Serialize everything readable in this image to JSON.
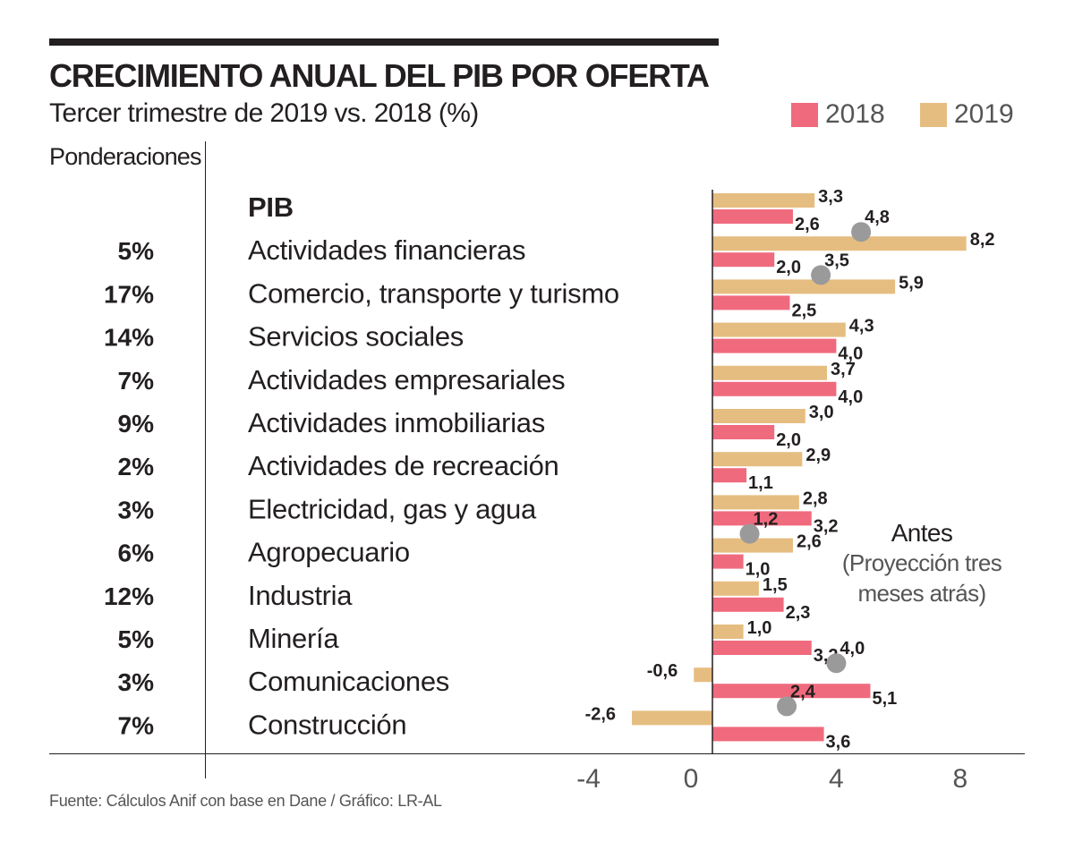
{
  "header": {
    "title": "CRECIMIENTO ANUAL DEL PIB POR OFERTA",
    "subtitle": "Tercer trimestre de 2019 vs. 2018 (%)"
  },
  "ponderaciones_label": "Ponderaciones",
  "note": {
    "heading": "Antes",
    "line1": "(Proyección tres",
    "line2": "meses atrás)"
  },
  "source": "Fuente: Cálculos Anif con base en Dane / Gráfico: LR-AL",
  "colors": {
    "s2018": "#f06a7e",
    "s2019": "#e6bd80",
    "marker": "#9a9a9a",
    "text": "#231f20",
    "axis": "#555555"
  },
  "chart_data": {
    "type": "bar",
    "orientation": "horizontal",
    "title": "CRECIMIENTO ANUAL DEL PIB POR OFERTA",
    "subtitle": "Tercer trimestre de 2019 vs. 2018 (%)",
    "xlim": [
      -6.3,
      10.8
    ],
    "x_ticks": [
      -4,
      0,
      4,
      8
    ],
    "x_tick_labels": [
      "-4",
      "0",
      "4",
      "8"
    ],
    "legend": [
      "2018",
      "2019"
    ],
    "legend_position": "top-right",
    "categories": [
      "PIB",
      "Actividades financieras",
      "Comercio, transporte y turismo",
      "Servicios sociales",
      "Actividades empresariales",
      "Actividades inmobiliarias",
      "Actividades de recreación",
      "Electricidad, gas y agua",
      "Agropecuario",
      "Industria",
      "Minería",
      "Comunicaciones",
      "Construcción"
    ],
    "weights": [
      "",
      "5%",
      "17%",
      "14%",
      "7%",
      "9%",
      "2%",
      "3%",
      "6%",
      "12%",
      "5%",
      "3%",
      "7%"
    ],
    "series": [
      {
        "name": "2019",
        "values": [
          3.3,
          8.2,
          5.9,
          4.3,
          3.7,
          3.0,
          2.9,
          2.8,
          2.6,
          1.5,
          1.0,
          -0.6,
          -2.6
        ],
        "labels": [
          "3,3",
          "8,2",
          "5,9",
          "4,3",
          "3,7",
          "3,0",
          "2,9",
          "2,8",
          "2,6",
          "1,5",
          "1,0",
          "-0,6",
          "-2,6"
        ]
      },
      {
        "name": "2018",
        "values": [
          2.6,
          2.0,
          2.5,
          4.0,
          4.0,
          2.0,
          1.1,
          3.2,
          1.0,
          2.3,
          3.2,
          5.1,
          3.6
        ],
        "labels": [
          "2,6",
          "2,0",
          "2,5",
          "4,0",
          "4,0",
          "2,0",
          "1,1",
          "3,2",
          "1,0",
          "2,3",
          "3,2",
          "5,1",
          "3,6"
        ]
      }
    ],
    "projections": [
      {
        "category": "Actividades financieras",
        "value": 4.8,
        "label": "4,8"
      },
      {
        "category": "Comercio, transporte y turismo",
        "value": 3.5,
        "label": "3,5"
      },
      {
        "category": "Agropecuario",
        "value": 1.2,
        "label": "1,2"
      },
      {
        "category": "Comunicaciones",
        "value": 4.0,
        "label": "4,0"
      },
      {
        "category": "Construcción",
        "value": 2.4,
        "label": "2,4"
      }
    ],
    "projection_label": "Antes (Proyección tres meses atrás)"
  }
}
